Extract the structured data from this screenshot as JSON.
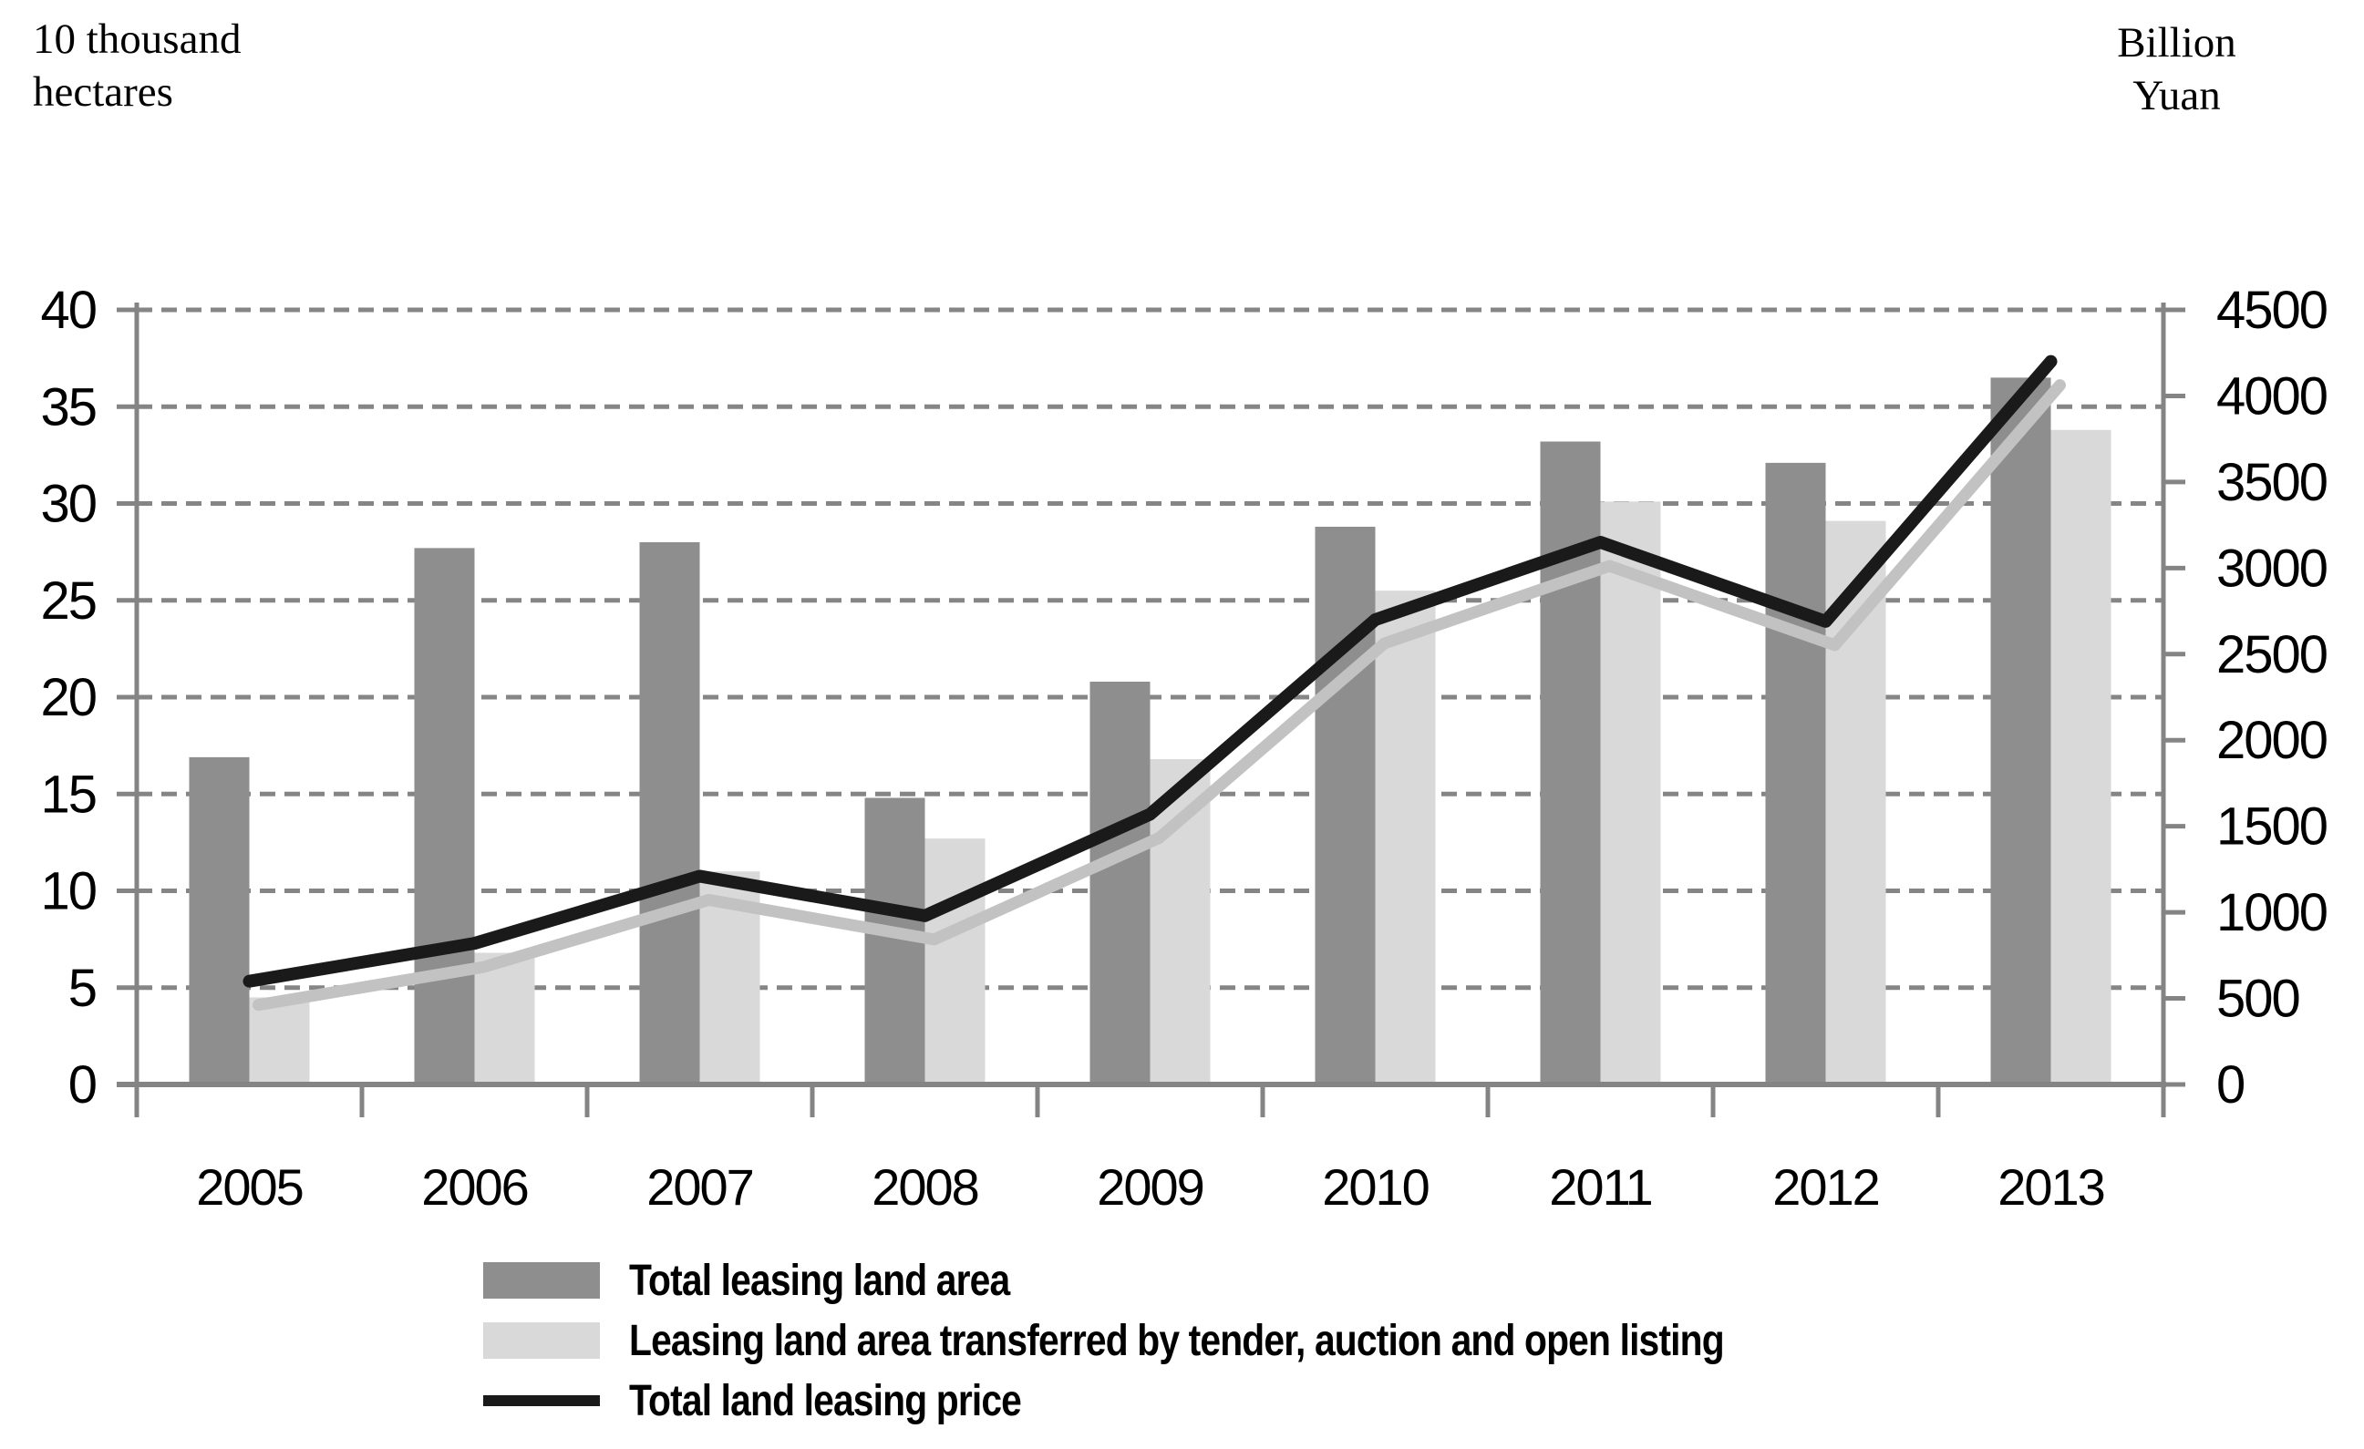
{
  "chart_data": {
    "type": "combo-bar-line",
    "categories": [
      "2005",
      "2006",
      "2007",
      "2008",
      "2009",
      "2010",
      "2011",
      "2012",
      "2013"
    ],
    "series": [
      {
        "name": "Total leasing land area",
        "type": "bar",
        "axis": "left",
        "color": "#8e8e8e",
        "values": [
          16.9,
          27.7,
          28.0,
          14.8,
          20.8,
          28.8,
          33.2,
          32.1,
          36.5
        ]
      },
      {
        "name": "Leasing land area transferred by tender, auction and open listing",
        "type": "bar",
        "axis": "left",
        "color": "#d9d9d9",
        "values": [
          4.5,
          6.8,
          11.0,
          12.7,
          16.8,
          25.5,
          30.1,
          29.1,
          33.8
        ]
      },
      {
        "name": "Total land leasing price",
        "type": "line",
        "axis": "right",
        "color": "#1a1a1a",
        "shadow_color": "#c2c2c2",
        "values": [
          600,
          820,
          1210,
          980,
          1570,
          2700,
          3150,
          2690,
          4200
        ]
      }
    ],
    "left_axis": {
      "title_lines": "10 thousand\nhectares",
      "min": 0,
      "max": 40,
      "step": 5,
      "ticks": [
        0,
        5,
        10,
        15,
        20,
        25,
        30,
        35,
        40
      ]
    },
    "right_axis": {
      "title_lines": "Billion\nYuan",
      "min": 0,
      "max": 4500,
      "step": 500,
      "ticks": [
        0,
        500,
        1000,
        1500,
        2000,
        2500,
        3000,
        3500,
        4000,
        4500
      ]
    },
    "grid": "dashed-horizontal",
    "legend_position": "bottom",
    "colors": {
      "axis": "#848484",
      "gridline": "#858585",
      "text": "#000000"
    }
  }
}
